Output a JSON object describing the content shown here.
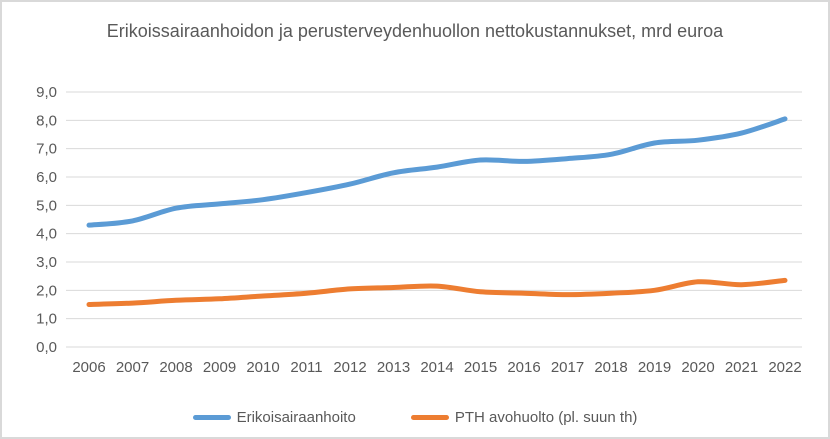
{
  "frame": {
    "background": "#FFFFFF",
    "border_color": "#D9D9D9"
  },
  "chart_data": {
    "type": "line",
    "title": "Erikoissairaanhoidon ja perusterveydenhuollon nettokustannukset, mrd euroa",
    "x": [
      2006,
      2007,
      2008,
      2009,
      2010,
      2011,
      2012,
      2013,
      2014,
      2015,
      2016,
      2017,
      2018,
      2019,
      2020,
      2021,
      2022
    ],
    "series": [
      {
        "name": "Erikoisairaanhoito",
        "color": "#5B9BD5",
        "values": [
          4.3,
          4.45,
          4.9,
          5.05,
          5.2,
          5.45,
          5.75,
          6.15,
          6.35,
          6.6,
          6.55,
          6.65,
          6.8,
          7.2,
          7.3,
          7.55,
          8.05
        ]
      },
      {
        "name": "PTH avohuolto (pl. suun th)",
        "color": "#ED7D31",
        "values": [
          1.5,
          1.55,
          1.65,
          1.7,
          1.8,
          1.9,
          2.05,
          2.1,
          2.15,
          1.95,
          1.9,
          1.85,
          1.9,
          2.0,
          2.3,
          2.2,
          2.35
        ]
      }
    ],
    "ylim": [
      0,
      9
    ],
    "ytick_labels": [
      "0,0",
      "1,0",
      "2,0",
      "3,0",
      "4,0",
      "5,0",
      "6,0",
      "7,0",
      "8,0",
      "9,0"
    ],
    "grid": true,
    "grid_color": "#D9D9D9",
    "text_color": "#595959",
    "legend_position": "bottom",
    "smooth": true
  }
}
